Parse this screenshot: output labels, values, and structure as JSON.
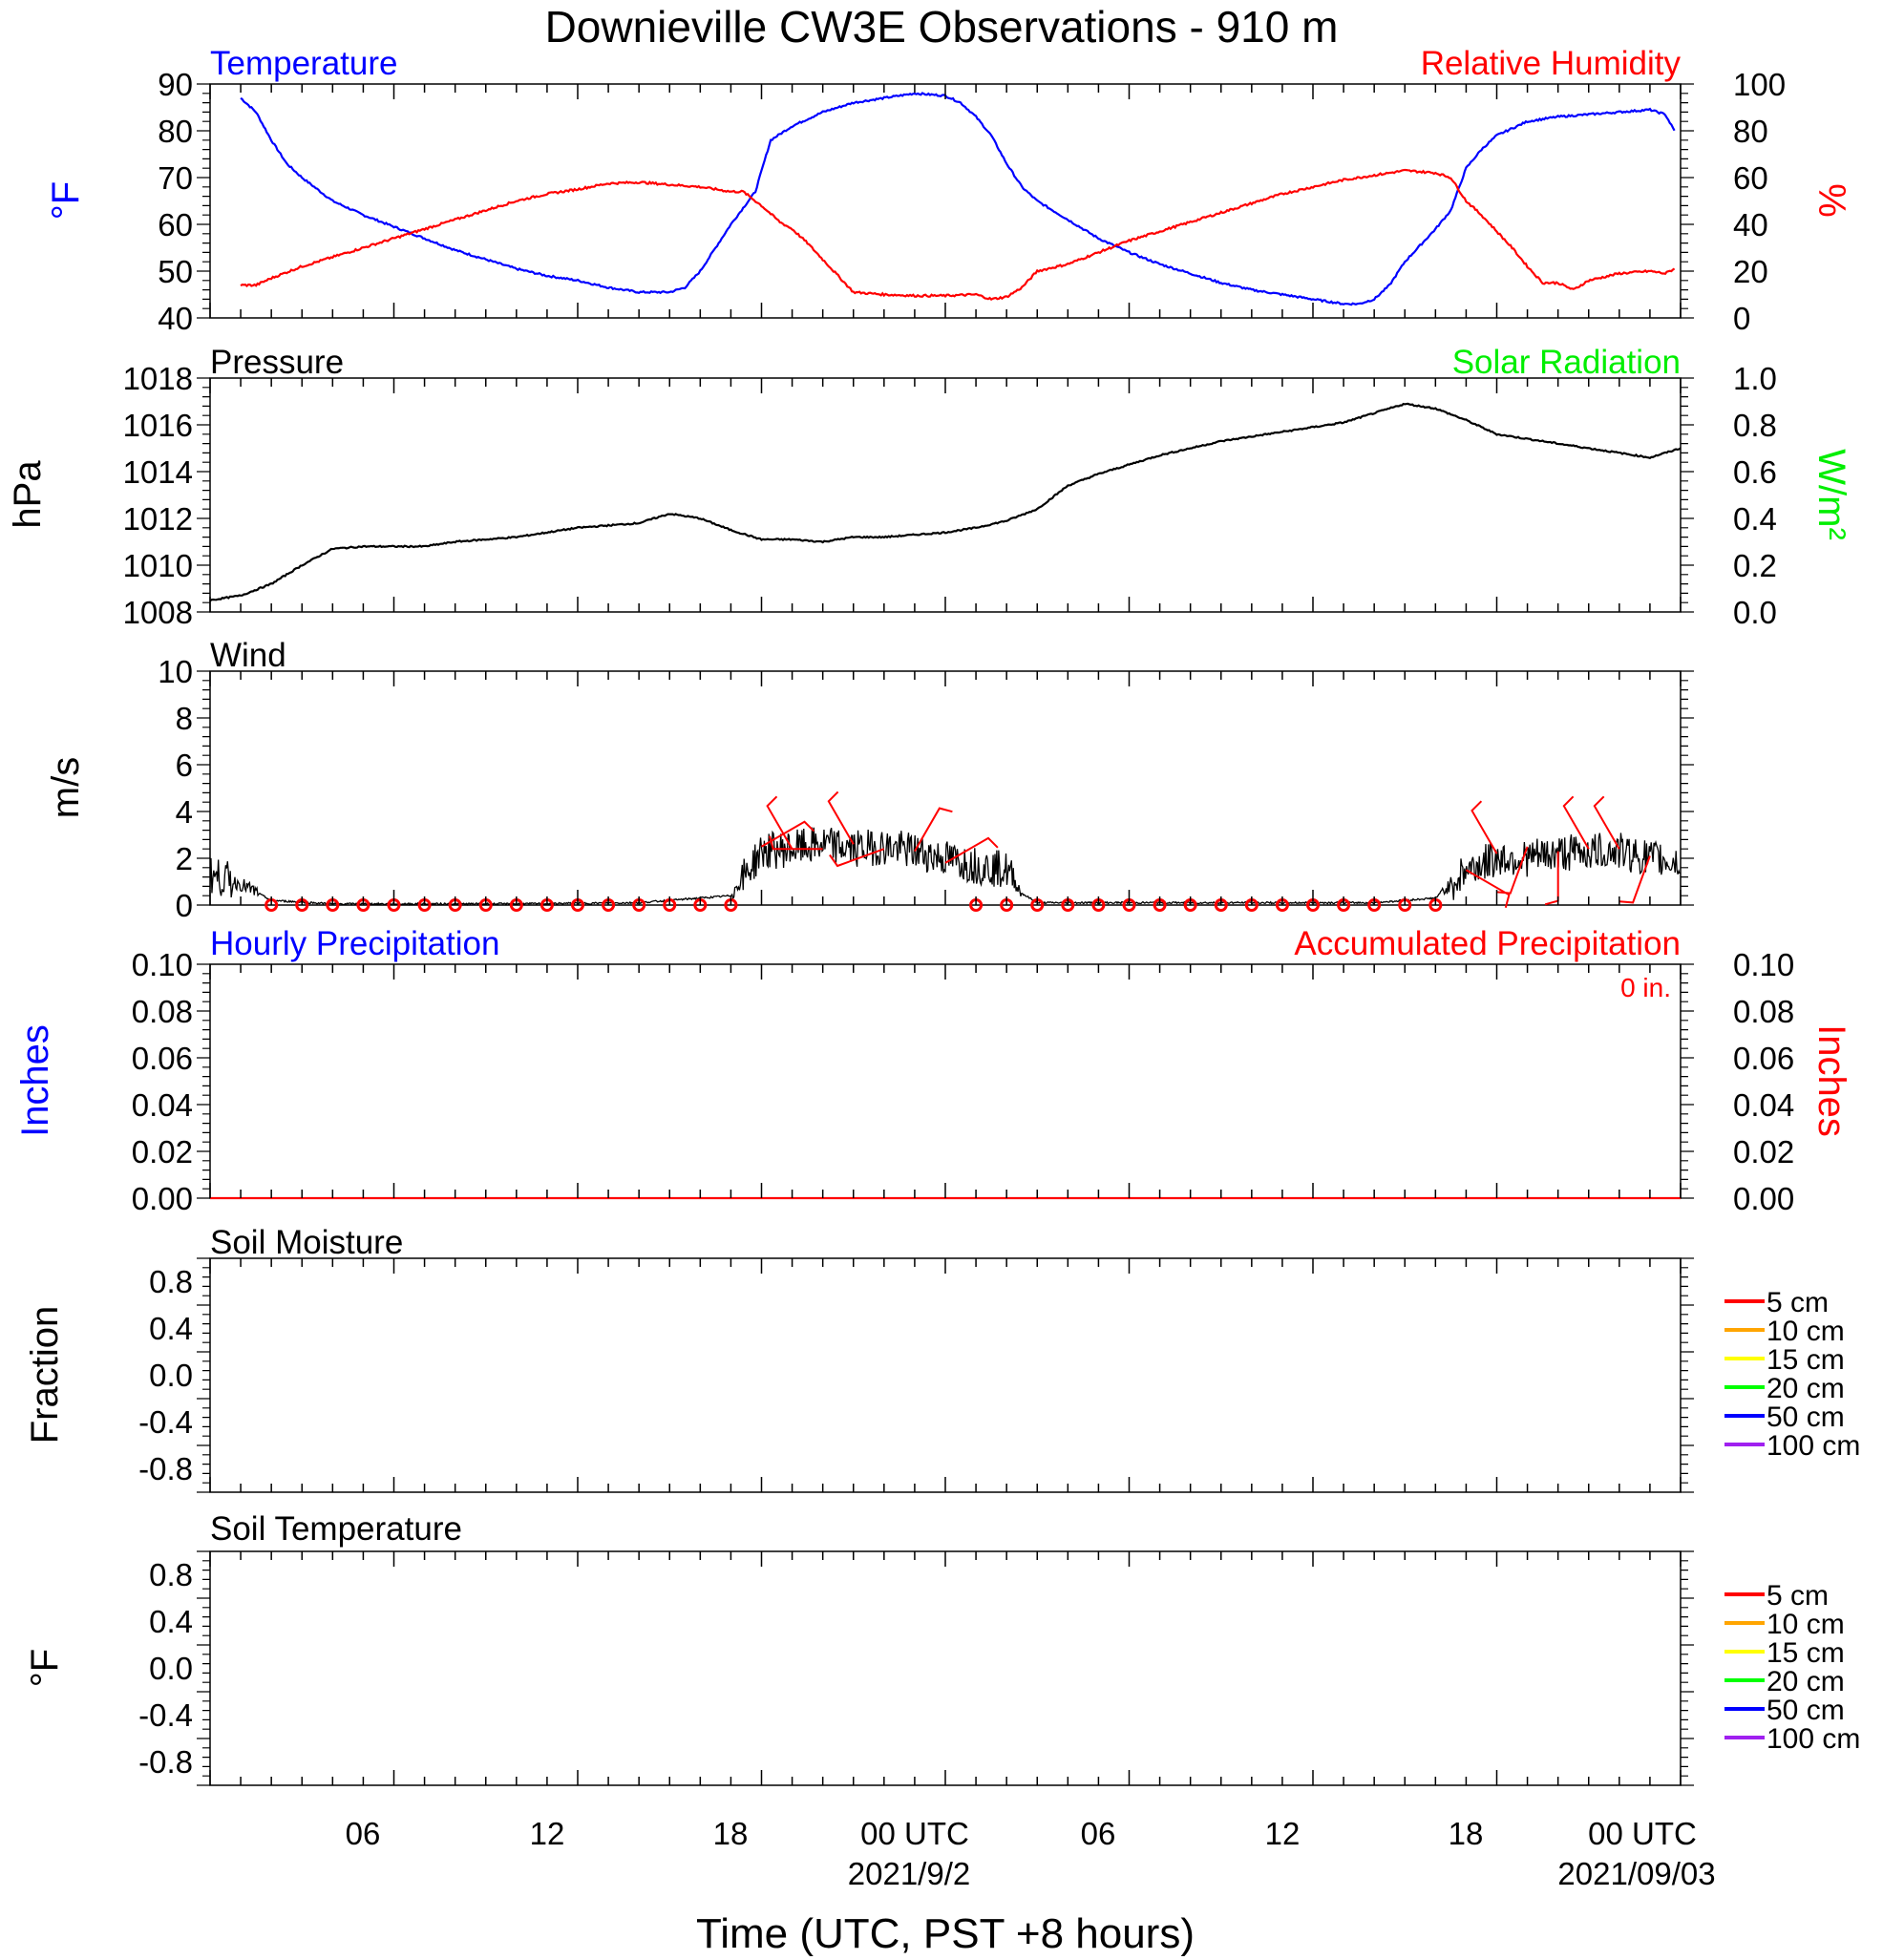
{
  "figure": {
    "title": "Downieville CW3E Observations - 910 m",
    "xlabel": "Time (UTC, PST +8 hours)",
    "x_tick_labels": [
      "06",
      "12",
      "18",
      "00 UTC",
      "06",
      "12",
      "18",
      "00 UTC"
    ],
    "date_labels": [
      "2021/9/2",
      "2021/09/03"
    ]
  },
  "chart_data": [
    {
      "panel": "temperature-rh",
      "type": "line",
      "title_left": "Temperature",
      "title_right": "Relative Humidity",
      "ylabel_left": "°F",
      "ylabel_right": "%",
      "ylim_left": [
        40,
        90
      ],
      "ylim_right": [
        0,
        100
      ],
      "yticks_left": [
        "90",
        "80",
        "70",
        "60",
        "50",
        "40"
      ],
      "yticks_right": [
        "100",
        "80",
        "60",
        "40",
        "20",
        "0"
      ],
      "series": [
        {
          "name": "Temperature",
          "color": "#0000ff",
          "axis": "left",
          "points": [
            [
              1.0,
              87
            ],
            [
              1.5,
              84
            ],
            [
              2,
              78
            ],
            [
              2.5,
              73
            ],
            [
              3,
              70
            ],
            [
              4,
              65
            ],
            [
              5,
              62
            ],
            [
              6,
              59.5
            ],
            [
              7,
              57
            ],
            [
              8,
              54.5
            ],
            [
              9,
              52.5
            ],
            [
              10,
              50.5
            ],
            [
              11,
              49
            ],
            [
              12,
              48
            ],
            [
              13,
              46.5
            ],
            [
              14,
              45.5
            ],
            [
              15,
              45.5
            ],
            [
              15.5,
              46.5
            ],
            [
              16,
              50
            ],
            [
              17,
              60
            ],
            [
              17.8,
              67
            ],
            [
              18.3,
              78
            ],
            [
              19,
              81
            ],
            [
              20,
              84
            ],
            [
              21,
              86
            ],
            [
              22,
              87
            ],
            [
              23,
              88
            ],
            [
              24,
              87.5
            ],
            [
              24.5,
              86
            ],
            [
              25,
              83
            ],
            [
              25.5,
              79
            ],
            [
              26,
              73
            ],
            [
              26.5,
              68
            ],
            [
              27,
              65
            ],
            [
              28,
              61
            ],
            [
              29,
              57
            ],
            [
              30,
              54
            ],
            [
              31,
              51.5
            ],
            [
              32,
              49.5
            ],
            [
              33,
              47.5
            ],
            [
              34,
              46
            ],
            [
              35,
              45
            ],
            [
              36,
              44
            ],
            [
              37,
              43
            ],
            [
              37.5,
              43
            ],
            [
              38,
              44
            ],
            [
              38.5,
              47
            ],
            [
              39,
              52
            ],
            [
              40,
              59
            ],
            [
              40.5,
              63
            ],
            [
              41,
              72
            ],
            [
              41.5,
              76
            ],
            [
              42,
              79
            ],
            [
              43,
              82
            ],
            [
              44,
              83
            ],
            [
              45,
              83.5
            ],
            [
              46,
              84
            ],
            [
              47,
              84.5
            ],
            [
              47.5,
              83.5
            ],
            [
              47.8,
              80
            ]
          ]
        },
        {
          "name": "Relative Humidity",
          "color": "#ff0000",
          "axis": "right",
          "points": [
            [
              1.0,
              14
            ],
            [
              1.5,
              14
            ],
            [
              2,
              17
            ],
            [
              3,
              22
            ],
            [
              4,
              26
            ],
            [
              5,
              30
            ],
            [
              6,
              34
            ],
            [
              7,
              38
            ],
            [
              8,
              42
            ],
            [
              9,
              46
            ],
            [
              10,
              50
            ],
            [
              11,
              53
            ],
            [
              12,
              55
            ],
            [
              13,
              57.5
            ],
            [
              14,
              58
            ],
            [
              15,
              57
            ],
            [
              16,
              56
            ],
            [
              17,
              54
            ],
            [
              17.4,
              54
            ],
            [
              18,
              48
            ],
            [
              18.6,
              41
            ],
            [
              19,
              38
            ],
            [
              19.5,
              32
            ],
            [
              20,
              25
            ],
            [
              21,
              11
            ],
            [
              22,
              10
            ],
            [
              23,
              9.5
            ],
            [
              24,
              9.5
            ],
            [
              25,
              10
            ],
            [
              25.5,
              8
            ],
            [
              26,
              9
            ],
            [
              26.5,
              13
            ],
            [
              27,
              20
            ],
            [
              28,
              23
            ],
            [
              29,
              28
            ],
            [
              30,
              33
            ],
            [
              31,
              37
            ],
            [
              32,
              41
            ],
            [
              33,
              45
            ],
            [
              34,
              49
            ],
            [
              35,
              53
            ],
            [
              36,
              56
            ],
            [
              37,
              59
            ],
            [
              38,
              61
            ],
            [
              38.5,
              62
            ],
            [
              39,
              63
            ],
            [
              40,
              62
            ],
            [
              40.5,
              60
            ],
            [
              41,
              50
            ],
            [
              41.5,
              44
            ],
            [
              42,
              37
            ],
            [
              42.5,
              30
            ],
            [
              43,
              22
            ],
            [
              43.5,
              15
            ],
            [
              44,
              15
            ],
            [
              44.5,
              12
            ],
            [
              45,
              16
            ],
            [
              46,
              19
            ],
            [
              47,
              20
            ],
            [
              47.5,
              19
            ],
            [
              47.8,
              21
            ]
          ]
        }
      ]
    },
    {
      "panel": "pressure",
      "type": "line",
      "title_left": "Pressure",
      "title_right": "Solar Radiation",
      "ylabel_left": "hPa",
      "ylabel_right": "W/m²",
      "ylim_left": [
        1008,
        1018
      ],
      "ylim_right": [
        0.0,
        1.0
      ],
      "yticks_left": [
        "1018",
        "1016",
        "1014",
        "1012",
        "1010",
        "1008"
      ],
      "yticks_right": [
        "1.0",
        "0.8",
        "0.6",
        "0.4",
        "0.2",
        "0.0"
      ],
      "series": [
        {
          "name": "Pressure",
          "color": "#000000",
          "axis": "left",
          "points": [
            [
              0,
              1008.5
            ],
            [
              1,
              1008.7
            ],
            [
              2,
              1009.2
            ],
            [
              3,
              1010.0
            ],
            [
              4,
              1010.7
            ],
            [
              5,
              1010.8
            ],
            [
              6,
              1010.8
            ],
            [
              7,
              1010.8
            ],
            [
              8,
              1011.0
            ],
            [
              9,
              1011.1
            ],
            [
              10,
              1011.2
            ],
            [
              11,
              1011.4
            ],
            [
              12,
              1011.6
            ],
            [
              13,
              1011.7
            ],
            [
              14,
              1011.8
            ],
            [
              15,
              1012.2
            ],
            [
              16,
              1012.0
            ],
            [
              17,
              1011.5
            ],
            [
              18,
              1011.1
            ],
            [
              19,
              1011.1
            ],
            [
              20,
              1011.0
            ],
            [
              21,
              1011.2
            ],
            [
              22,
              1011.2
            ],
            [
              23,
              1011.3
            ],
            [
              24,
              1011.4
            ],
            [
              25,
              1011.6
            ],
            [
              26,
              1011.9
            ],
            [
              27,
              1012.4
            ],
            [
              28,
              1013.4
            ],
            [
              29,
              1013.9
            ],
            [
              30,
              1014.3
            ],
            [
              31,
              1014.7
            ],
            [
              32,
              1015.0
            ],
            [
              33,
              1015.3
            ],
            [
              34,
              1015.5
            ],
            [
              35,
              1015.7
            ],
            [
              36,
              1015.9
            ],
            [
              37,
              1016.1
            ],
            [
              38,
              1016.5
            ],
            [
              39,
              1016.9
            ],
            [
              40,
              1016.7
            ],
            [
              41,
              1016.2
            ],
            [
              42,
              1015.6
            ],
            [
              43,
              1015.4
            ],
            [
              44,
              1015.2
            ],
            [
              45,
              1015.0
            ],
            [
              46,
              1014.8
            ],
            [
              47,
              1014.6
            ],
            [
              48,
              1015.0
            ]
          ]
        }
      ]
    },
    {
      "panel": "wind",
      "type": "line",
      "title_left": "Wind",
      "ylabel_left": "m/s",
      "ylim_left": [
        0,
        10
      ],
      "yticks_left": [
        "10",
        "8",
        "6",
        "4",
        "2",
        "0"
      ],
      "series": [
        {
          "name": "Wind speed",
          "color": "#000000",
          "points": [
            [
              0,
              1.3
            ],
            [
              1,
              0.9
            ],
            [
              2,
              0.2
            ],
            [
              4,
              0.05
            ],
            [
              10,
              0.05
            ],
            [
              14,
              0.1
            ],
            [
              16,
              0.3
            ],
            [
              17,
              0.4
            ],
            [
              18,
              2.3
            ],
            [
              19,
              2.4
            ],
            [
              20,
              2.6
            ],
            [
              21,
              2.4
            ],
            [
              22,
              2.5
            ],
            [
              23,
              2.3
            ],
            [
              24,
              2.0
            ],
            [
              25,
              1.7
            ],
            [
              26,
              1.5
            ],
            [
              26.5,
              0.5
            ],
            [
              27,
              0.1
            ],
            [
              38,
              0.1
            ],
            [
              40,
              0.3
            ],
            [
              41,
              1.5
            ],
            [
              42,
              2.0
            ],
            [
              43,
              2.0
            ],
            [
              44,
              2.2
            ],
            [
              45,
              2.3
            ],
            [
              46,
              2.3
            ],
            [
              47,
              2.0
            ],
            [
              48,
              1.8
            ]
          ]
        }
      ],
      "calm_markers_hours": [
        2,
        3,
        4,
        5,
        6,
        7,
        8,
        9,
        10,
        11,
        12,
        13,
        14,
        15,
        16,
        17,
        25,
        26,
        27,
        28,
        29,
        30,
        31,
        32,
        33,
        34,
        35,
        36,
        37,
        38,
        39,
        40
      ],
      "barbs": [
        {
          "hour": 18,
          "speed": 2.5,
          "dir": 60
        },
        {
          "hour": 19,
          "speed": 2.4,
          "dir": 330
        },
        {
          "hour": 20,
          "speed": 2.4,
          "dir": 270
        },
        {
          "hour": 21,
          "speed": 2.6,
          "dir": 330
        },
        {
          "hour": 22,
          "speed": 2.4,
          "dir": 250
        },
        {
          "hour": 23,
          "speed": 2.3,
          "dir": 30
        },
        {
          "hour": 24,
          "speed": 1.8,
          "dir": 60
        },
        {
          "hour": 41,
          "speed": 1.5,
          "dir": 120
        },
        {
          "hour": 42,
          "speed": 2.2,
          "dir": 330
        },
        {
          "hour": 43,
          "speed": 2.5,
          "dir": 200
        },
        {
          "hour": 44,
          "speed": 2.3,
          "dir": 180
        },
        {
          "hour": 45,
          "speed": 2.4,
          "dir": 330
        },
        {
          "hour": 46,
          "speed": 2.4,
          "dir": 330
        },
        {
          "hour": 47,
          "speed": 2.1,
          "dir": 200
        }
      ]
    },
    {
      "panel": "precipitation",
      "type": "line",
      "title_left": "Hourly Precipitation",
      "title_right": "Accumulated Precipitation",
      "annotation": "0 in.",
      "ylabel_left": "Inches",
      "ylabel_right": "Inches",
      "ylim_left": [
        0,
        0.1
      ],
      "ylim_right": [
        0,
        0.1
      ],
      "yticks_left": [
        "0.10",
        "0.08",
        "0.06",
        "0.04",
        "0.02",
        "0.00"
      ],
      "yticks_right": [
        "0.10",
        "0.08",
        "0.06",
        "0.04",
        "0.02",
        "0.00"
      ],
      "series": [
        {
          "name": "Accumulated Precipitation",
          "color": "#ff0000",
          "points": [
            [
              0,
              0
            ],
            [
              48,
              0
            ]
          ]
        }
      ]
    },
    {
      "panel": "soil-moisture",
      "type": "line",
      "title_left": "Soil Moisture",
      "ylabel_left": "Fraction",
      "ylim_left": [
        -1,
        1
      ],
      "yticks_left": [
        "0.8",
        "0.4",
        "0.0",
        "-0.4",
        "-0.8"
      ],
      "legend": [
        {
          "label": "5 cm",
          "color": "#ff0000"
        },
        {
          "label": "10 cm",
          "color": "#ffa500"
        },
        {
          "label": "15 cm",
          "color": "#ffff00"
        },
        {
          "label": "20 cm",
          "color": "#00ff00"
        },
        {
          "label": "50 cm",
          "color": "#0000ff"
        },
        {
          "label": "100 cm",
          "color": "#a020f0"
        }
      ]
    },
    {
      "panel": "soil-temperature",
      "type": "line",
      "title_left": "Soil Temperature",
      "ylabel_left": "°F",
      "ylim_left": [
        -1,
        1
      ],
      "yticks_left": [
        "0.8",
        "0.4",
        "0.0",
        "-0.4",
        "-0.8"
      ],
      "legend": [
        {
          "label": "5 cm",
          "color": "#ff0000"
        },
        {
          "label": "10 cm",
          "color": "#ffa500"
        },
        {
          "label": "15 cm",
          "color": "#ffff00"
        },
        {
          "label": "20 cm",
          "color": "#00ff00"
        },
        {
          "label": "50 cm",
          "color": "#0000ff"
        },
        {
          "label": "100 cm",
          "color": "#a020f0"
        }
      ]
    }
  ]
}
